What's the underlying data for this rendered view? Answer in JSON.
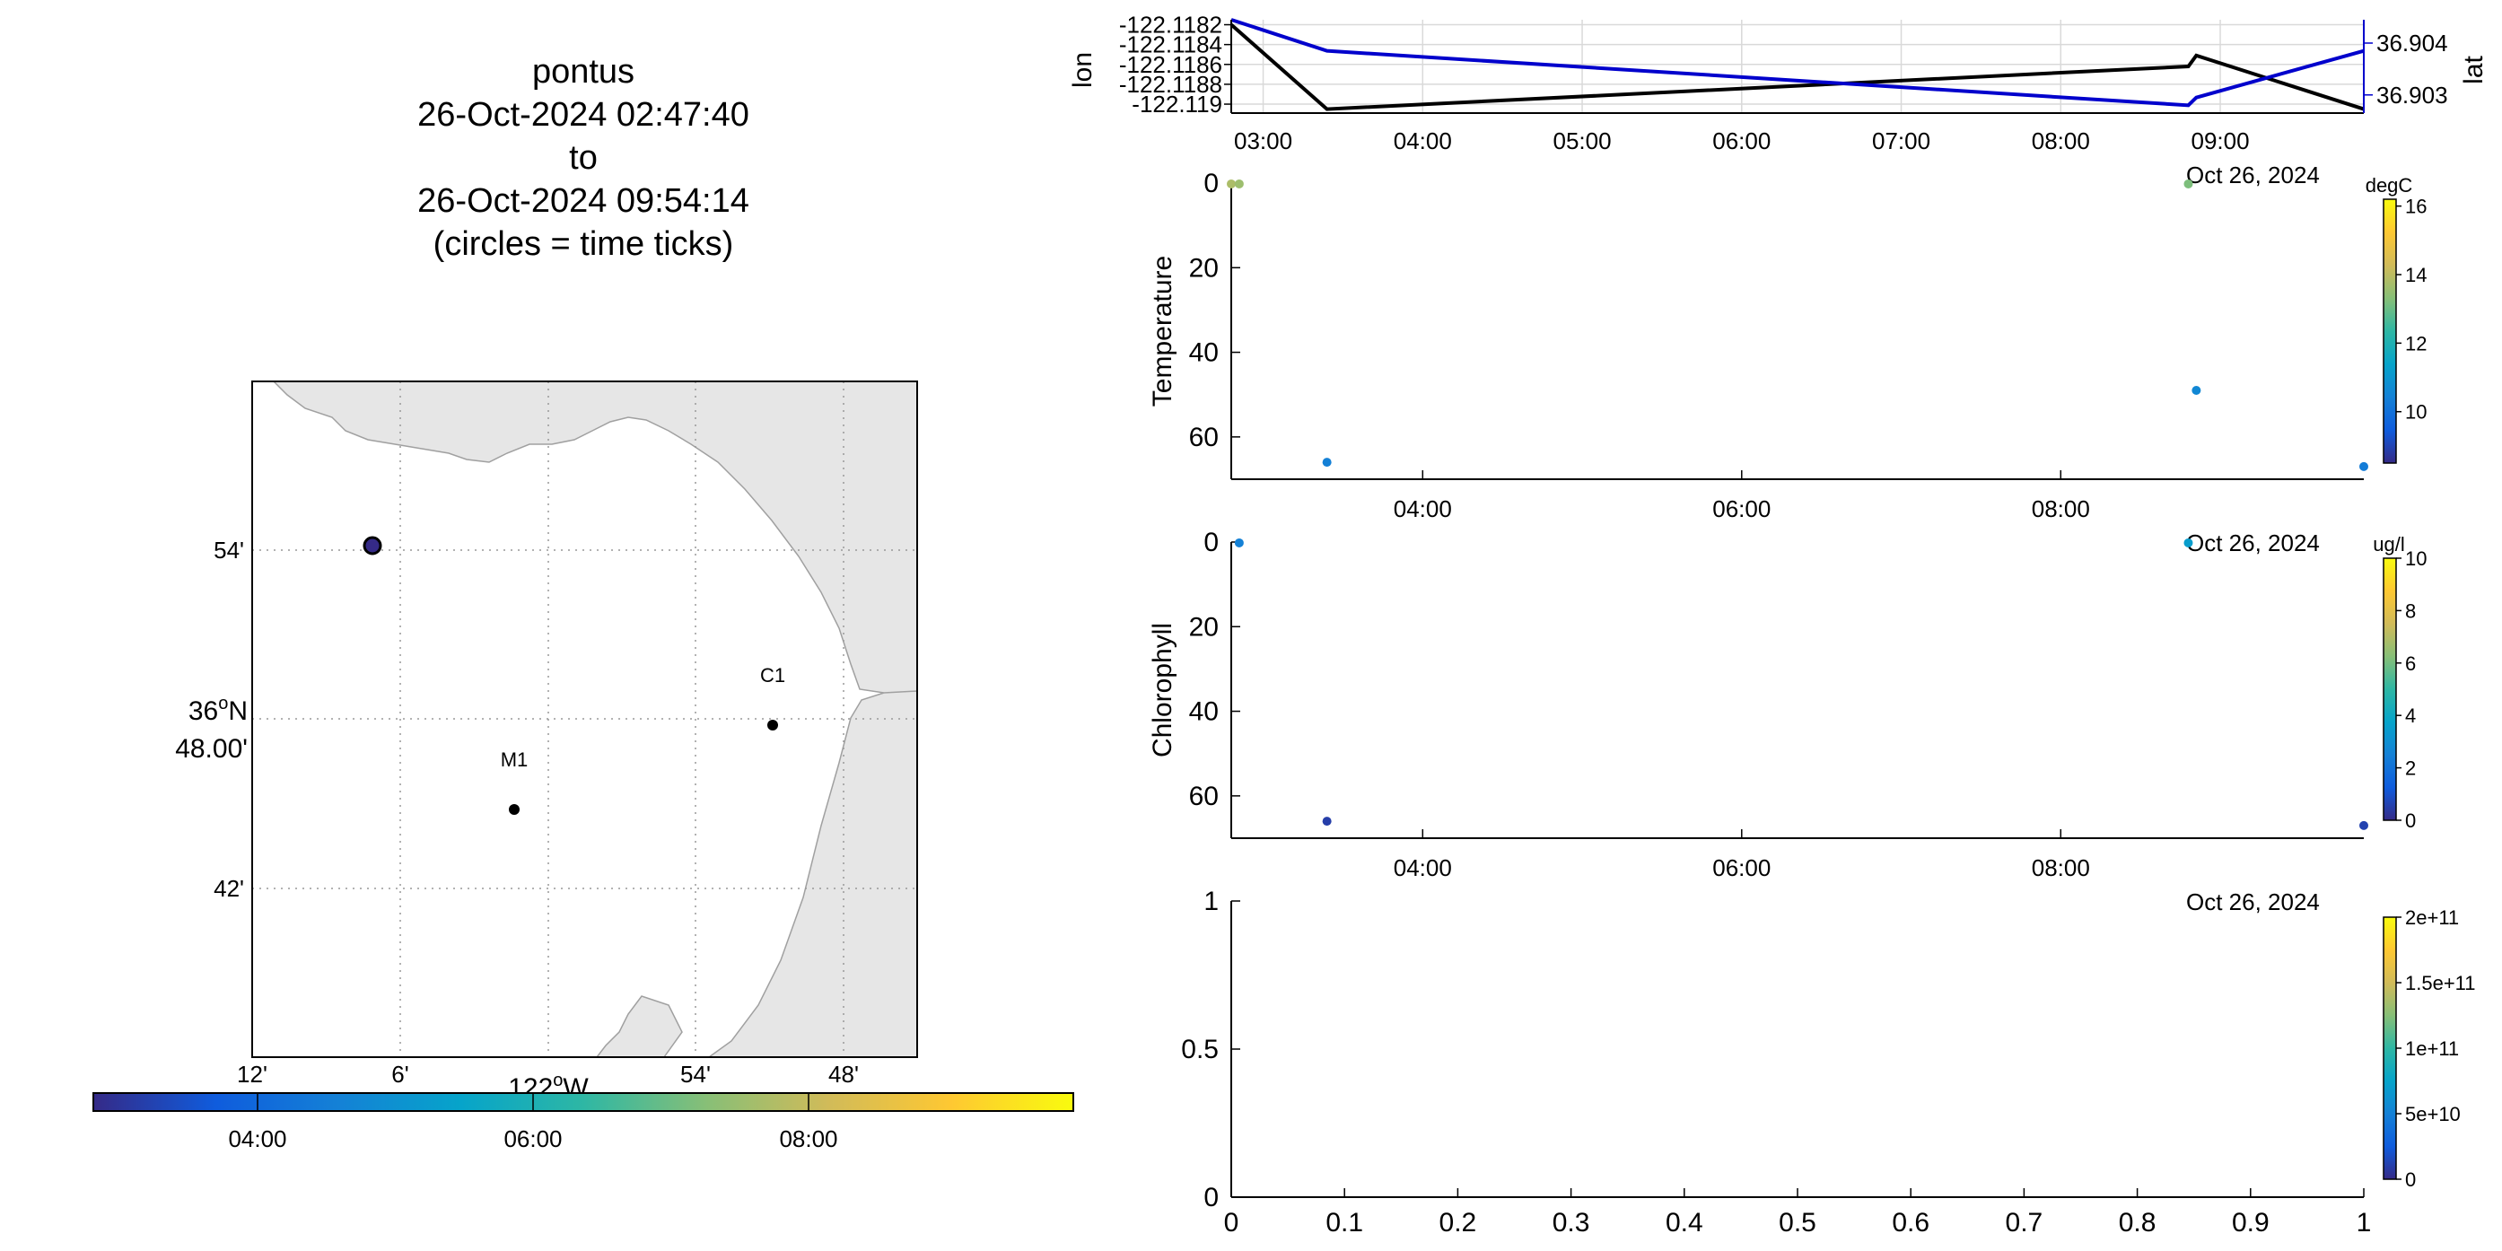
{
  "title": {
    "lines": [
      "pontus",
      "26-Oct-2024 02:47:40",
      "to",
      "26-Oct-2024 09:54:14",
      "(circles = time ticks)"
    ]
  },
  "colors": {
    "track_lon": "#000000",
    "track_lat": "#0000cc",
    "coast_fill": "#e6e6e6",
    "grid": "#bbbbbb",
    "parula": [
      "#352a87",
      "#0f5cdd",
      "#1481d6",
      "#06a4ca",
      "#2eb7a4",
      "#87bf77",
      "#d1bb59",
      "#fec832",
      "#f9fb0e"
    ]
  },
  "map": {
    "lat_ticks": [
      "54'",
      "48.00'",
      "42'"
    ],
    "lat_degree": "36",
    "lat_degree_suffix": "N",
    "lon_ticks": [
      "12'",
      "6'",
      "54'",
      "48'"
    ],
    "lon_degree": "122",
    "lon_degree_suffix": "W",
    "stations": [
      {
        "name": "C1",
        "lon": -121.901,
        "lat": 36.797
      },
      {
        "name": "M1",
        "lon": -122.0,
        "lat": 36.768
      }
    ],
    "track_position": {
      "lon": -122.119,
      "lat": 36.904
    },
    "colorbar_ticks": [
      "04:00",
      "06:00",
      "08:00"
    ]
  },
  "chart_data": [
    {
      "type": "line",
      "name": "position-timeseries",
      "xlabel": "",
      "ylabel": "lon",
      "y2label": "lat",
      "x_ticks": [
        "03:00",
        "04:00",
        "05:00",
        "06:00",
        "07:00",
        "08:00",
        "09:00"
      ],
      "x_tick_hours": [
        3,
        4,
        5,
        6,
        7,
        8,
        9
      ],
      "xlim_hours": [
        2.8,
        9.9
      ],
      "y_ticks": [
        "-122.1182",
        "-122.1184",
        "-122.1186",
        "-122.1188",
        "-122.119"
      ],
      "y_tick_values": [
        -122.1182,
        -122.1184,
        -122.1186,
        -122.1188,
        -122.119
      ],
      "ylim": [
        -122.11909,
        -122.11815
      ],
      "y2_ticks": [
        "36.904",
        "36.903"
      ],
      "y2_tick_values": [
        36.904,
        36.903
      ],
      "y2lim": [
        36.90265,
        36.90445
      ],
      "grid": true,
      "series": [
        {
          "axis": "left",
          "x_hours": [
            2.8,
            3.4,
            8.8,
            8.85,
            9.9
          ],
          "values": [
            -122.1182,
            -122.11905,
            -122.11862,
            -122.11851,
            -122.11905
          ]
        },
        {
          "axis": "right",
          "x_hours": [
            2.8,
            3.4,
            8.8,
            8.85,
            9.9
          ],
          "values": [
            36.90445,
            36.90385,
            36.9028,
            36.90295,
            36.90385
          ]
        }
      ],
      "date_label": "Oct 26, 2024"
    },
    {
      "type": "scatter",
      "name": "temperature-section",
      "ylabel": "Temperature",
      "x_ticks": [
        "04:00",
        "06:00",
        "08:00"
      ],
      "x_tick_hours": [
        4,
        6,
        8
      ],
      "xlim_hours": [
        2.8,
        9.9
      ],
      "y_ticks": [
        "0",
        "20",
        "40",
        "60"
      ],
      "y_tick_values": [
        0,
        20,
        40,
        60
      ],
      "ylim": [
        0,
        70
      ],
      "reverse_y": true,
      "colorbar_label": "degC",
      "colorbar_ticks": [
        "16",
        "14",
        "12",
        "10"
      ],
      "colorbar_tick_values": [
        16,
        14,
        12,
        10
      ],
      "clim": [
        8.5,
        16.2
      ],
      "points": [
        {
          "x_hours": 2.8,
          "y": 0.2,
          "value": 13.8
        },
        {
          "x_hours": 2.85,
          "y": 0.2,
          "value": 13.6
        },
        {
          "x_hours": 8.8,
          "y": 0.2,
          "value": 13.2
        },
        {
          "x_hours": 3.4,
          "y": 66,
          "value": 10.4
        },
        {
          "x_hours": 8.85,
          "y": 49,
          "value": 10.6
        },
        {
          "x_hours": 9.9,
          "y": 67,
          "value": 10.3
        }
      ],
      "date_label": "Oct 26, 2024"
    },
    {
      "type": "scatter",
      "name": "chlorophyll-section",
      "ylabel": "Chlorophyll",
      "x_ticks": [
        "04:00",
        "06:00",
        "08:00"
      ],
      "x_tick_hours": [
        4,
        6,
        8
      ],
      "xlim_hours": [
        2.8,
        9.9
      ],
      "y_ticks": [
        "0",
        "20",
        "40",
        "60"
      ],
      "y_tick_values": [
        0,
        20,
        40,
        60
      ],
      "ylim": [
        0,
        70
      ],
      "reverse_y": true,
      "colorbar_label": "ug/l",
      "colorbar_ticks": [
        "10",
        "8",
        "6",
        "4",
        "2",
        "0"
      ],
      "colorbar_tick_values": [
        10,
        8,
        6,
        4,
        2,
        0
      ],
      "clim": [
        0,
        10
      ],
      "points": [
        {
          "x_hours": 2.85,
          "y": 0.2,
          "value": 2.5
        },
        {
          "x_hours": 8.8,
          "y": 0.2,
          "value": 3.5
        },
        {
          "x_hours": 3.4,
          "y": 66,
          "value": 0.5
        },
        {
          "x_hours": 9.9,
          "y": 67,
          "value": 0.6
        }
      ],
      "date_label": "Oct 26, 2024"
    },
    {
      "type": "scatter",
      "name": "empty-panel",
      "x_ticks": [
        "0",
        "0.1",
        "0.2",
        "0.3",
        "0.4",
        "0.5",
        "0.6",
        "0.7",
        "0.8",
        "0.9",
        "1"
      ],
      "x_tick_values": [
        0,
        0.1,
        0.2,
        0.3,
        0.4,
        0.5,
        0.6,
        0.7,
        0.8,
        0.9,
        1
      ],
      "y_ticks": [
        "1",
        "0.5",
        "0"
      ],
      "y_tick_values": [
        1,
        0.5,
        0
      ],
      "xlim": [
        0,
        1
      ],
      "ylim": [
        0,
        1
      ],
      "colorbar_ticks": [
        "2e+11",
        "1.5e+11",
        "1e+11",
        "5e+10",
        "0"
      ],
      "colorbar_tick_values": [
        200000000000.0,
        150000000000.0,
        100000000000.0,
        50000000000.0,
        0
      ],
      "clim": [
        0,
        200000000000.0
      ],
      "points": []
    }
  ]
}
